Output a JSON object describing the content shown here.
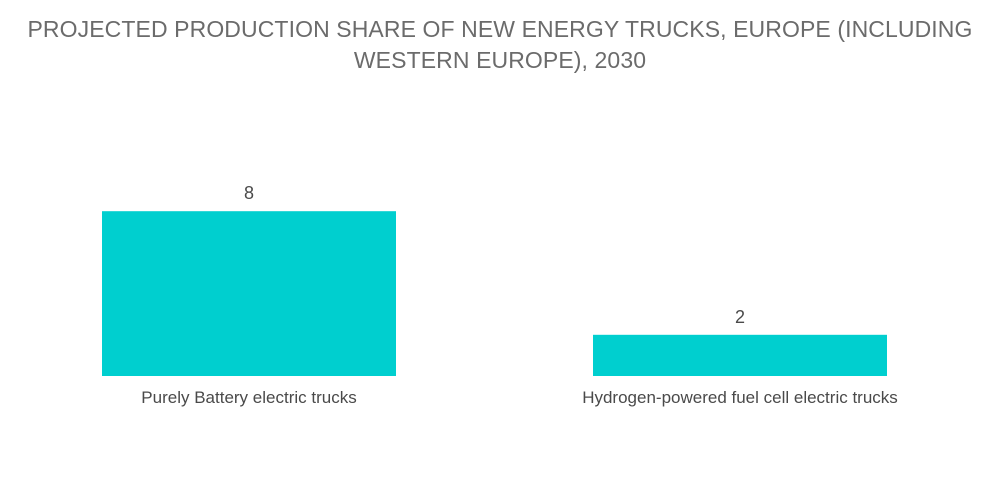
{
  "chart_data": {
    "type": "bar",
    "title_lines": [
      "PROJECTED PRODUCTION SHARE OF NEW ENERGY TRUCKS, EUROPE (INCLUDING",
      "WESTERN EUROPE), 2030"
    ],
    "categories": [
      "Purely Battery electric trucks",
      "Hydrogen-powered fuel cell electric trucks"
    ],
    "values": [
      8,
      2
    ],
    "data_labels": [
      "8",
      "2"
    ],
    "xlabel": "",
    "ylabel": "",
    "grid": false,
    "legend": false,
    "colors": {
      "bar": "#00cfcf",
      "title": "#6b6b6b",
      "text": "#4a4a4a"
    }
  }
}
